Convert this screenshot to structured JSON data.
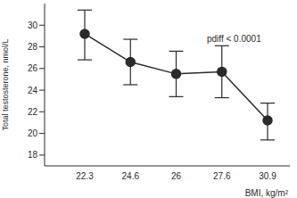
{
  "chart_data": {
    "type": "line",
    "x_label": "BMI, kg/m²",
    "y_label": "Total testosterone, nmol/L",
    "annotation": "pdiff < 0.0001",
    "categories": [
      "22.3",
      "24.6",
      "26",
      "27.6",
      "30.9"
    ],
    "values": [
      29.2,
      26.6,
      25.5,
      25.7,
      21.2
    ],
    "error_lower": [
      26.8,
      24.5,
      23.4,
      23.3,
      19.4
    ],
    "error_upper": [
      31.4,
      28.7,
      27.6,
      28.1,
      22.8
    ],
    "color": "#2a2a2a",
    "marker": "circle",
    "ylim": [
      17,
      32
    ],
    "yticks": [
      18,
      20,
      22,
      24,
      26,
      28,
      30
    ],
    "grid": false
  }
}
